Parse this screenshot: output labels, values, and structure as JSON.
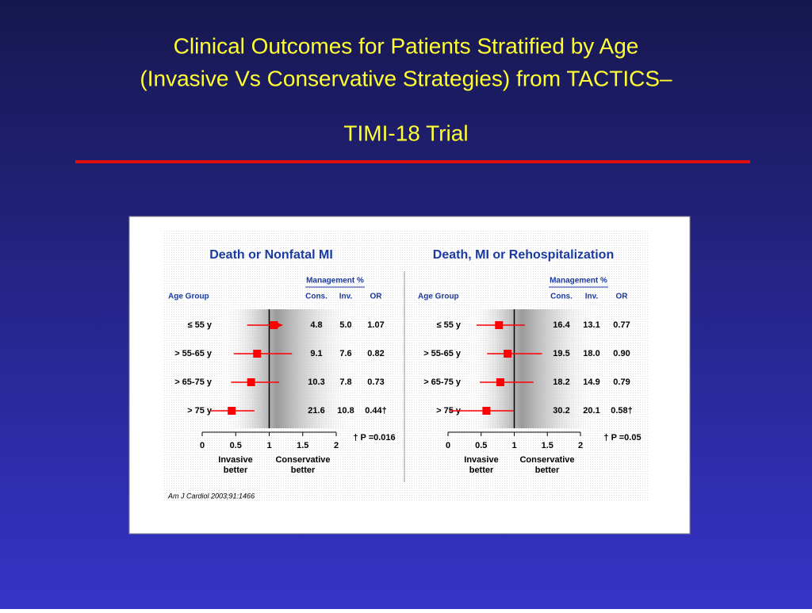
{
  "title": [
    "Clinical Outcomes for Patients Stratified by Age",
    "(Invasive Vs Conservative Strategies) from TACTICS–",
    "TIMI-18 Trial"
  ],
  "citation": "Am J Cardiol 2003;91:1466",
  "chart_data": [
    {
      "type": "forest",
      "title": "Death or Nonfatal MI",
      "category_label": "Age Group",
      "group_label": "Management %",
      "value_name": "OR",
      "categories": [
        "≤ 55 y",
        "> 55-65 y",
        "> 65-75 y",
        "> 75 y"
      ],
      "values": [
        1.07,
        0.82,
        0.73,
        0.44
      ],
      "value_labels": [
        "1.07",
        "0.82",
        "0.73",
        "0.44†"
      ],
      "ci": [
        [
          0.67,
          1.2
        ],
        [
          0.47,
          1.34
        ],
        [
          0.43,
          1.15
        ],
        [
          0.12,
          0.78
        ]
      ],
      "arrows": [
        true,
        false,
        false,
        false
      ],
      "columns": [
        {
          "name": "Cons.",
          "values": [
            4.8,
            9.1,
            10.3,
            21.6
          ]
        },
        {
          "name": "Inv.",
          "values": [
            5.0,
            7.6,
            7.8,
            10.8
          ],
          "value_labels": [
            "5.0",
            "7.6",
            "7.8",
            "10.8"
          ]
        }
      ],
      "xlim": [
        0,
        2
      ],
      "xticks": [
        0,
        0.5,
        1,
        1.5,
        2
      ],
      "reference": 1,
      "color": "#ff0000",
      "footnote": "† P =0.016",
      "left_note": [
        "Invasive",
        "better"
      ],
      "right_note": [
        "Conservative",
        "better"
      ]
    },
    {
      "type": "forest",
      "title": "Death, MI or Rehospitalization",
      "category_label": "Age Group",
      "group_label": "Management %",
      "value_name": "OR",
      "categories": [
        "≤ 55 y",
        "> 55-65 y",
        "> 65-75 y",
        "> 75 y"
      ],
      "values": [
        0.77,
        0.9,
        0.79,
        0.58
      ],
      "value_labels": [
        "0.77",
        "0.90",
        "0.79",
        "0.58†"
      ],
      "ci": [
        [
          0.43,
          1.16
        ],
        [
          0.59,
          1.42
        ],
        [
          0.48,
          1.29
        ],
        [
          0.02,
          0.99
        ]
      ],
      "arrows": [
        false,
        false,
        false,
        false
      ],
      "columns": [
        {
          "name": "Cons.",
          "values": [
            16.4,
            19.5,
            18.2,
            30.2
          ]
        },
        {
          "name": "Inv.",
          "values": [
            13.1,
            18.0,
            14.9,
            20.1
          ],
          "value_labels": [
            "13.1",
            "18.0",
            "14.9",
            "20.1"
          ]
        }
      ],
      "xlim": [
        0,
        2
      ],
      "xticks": [
        0,
        0.5,
        1,
        1.5,
        2
      ],
      "reference": 1,
      "color": "#ff0000",
      "footnote": "† P =0.05",
      "left_note": [
        "Invasive",
        "better"
      ],
      "right_note": [
        "Conservative",
        "better"
      ]
    }
  ]
}
